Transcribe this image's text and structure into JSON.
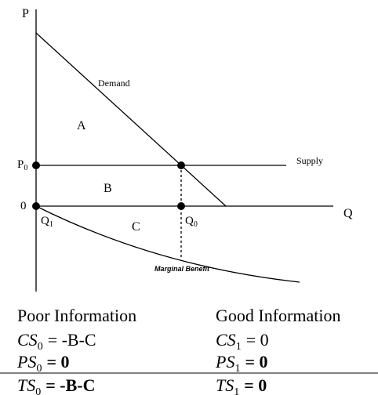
{
  "diagram": {
    "axis_labels": {
      "p": "P",
      "q": "Q"
    },
    "curves": {
      "demand": "Demand",
      "supply": "Supply",
      "marginal_benefit": "Marginal Benefit"
    },
    "areas": {
      "a": "A",
      "b": "B",
      "c": "C"
    },
    "points": {
      "p0": {
        "base": "P",
        "sub": "0"
      },
      "origin": "0",
      "q1": {
        "base": "Q",
        "sub": "1"
      },
      "q0": {
        "base": "Q",
        "sub": "0"
      }
    }
  },
  "table": {
    "header": [
      "Poor Information",
      "Good Information"
    ],
    "rows": [
      [
        {
          "var": "CS",
          "sub": "0",
          "rhs": "= -B-C"
        },
        {
          "var": "CS",
          "sub": "1",
          "rhs": "= 0"
        }
      ],
      [
        {
          "var": "PS",
          "sub": "0",
          "rhs": "= 0"
        },
        {
          "var": "PS",
          "sub": "1",
          "rhs": "= 0"
        }
      ],
      [
        {
          "var": "TS",
          "sub": "0",
          "rhs": "= -B-C"
        },
        {
          "var": "TS",
          "sub": "1",
          "rhs": "= 0"
        }
      ]
    ]
  }
}
